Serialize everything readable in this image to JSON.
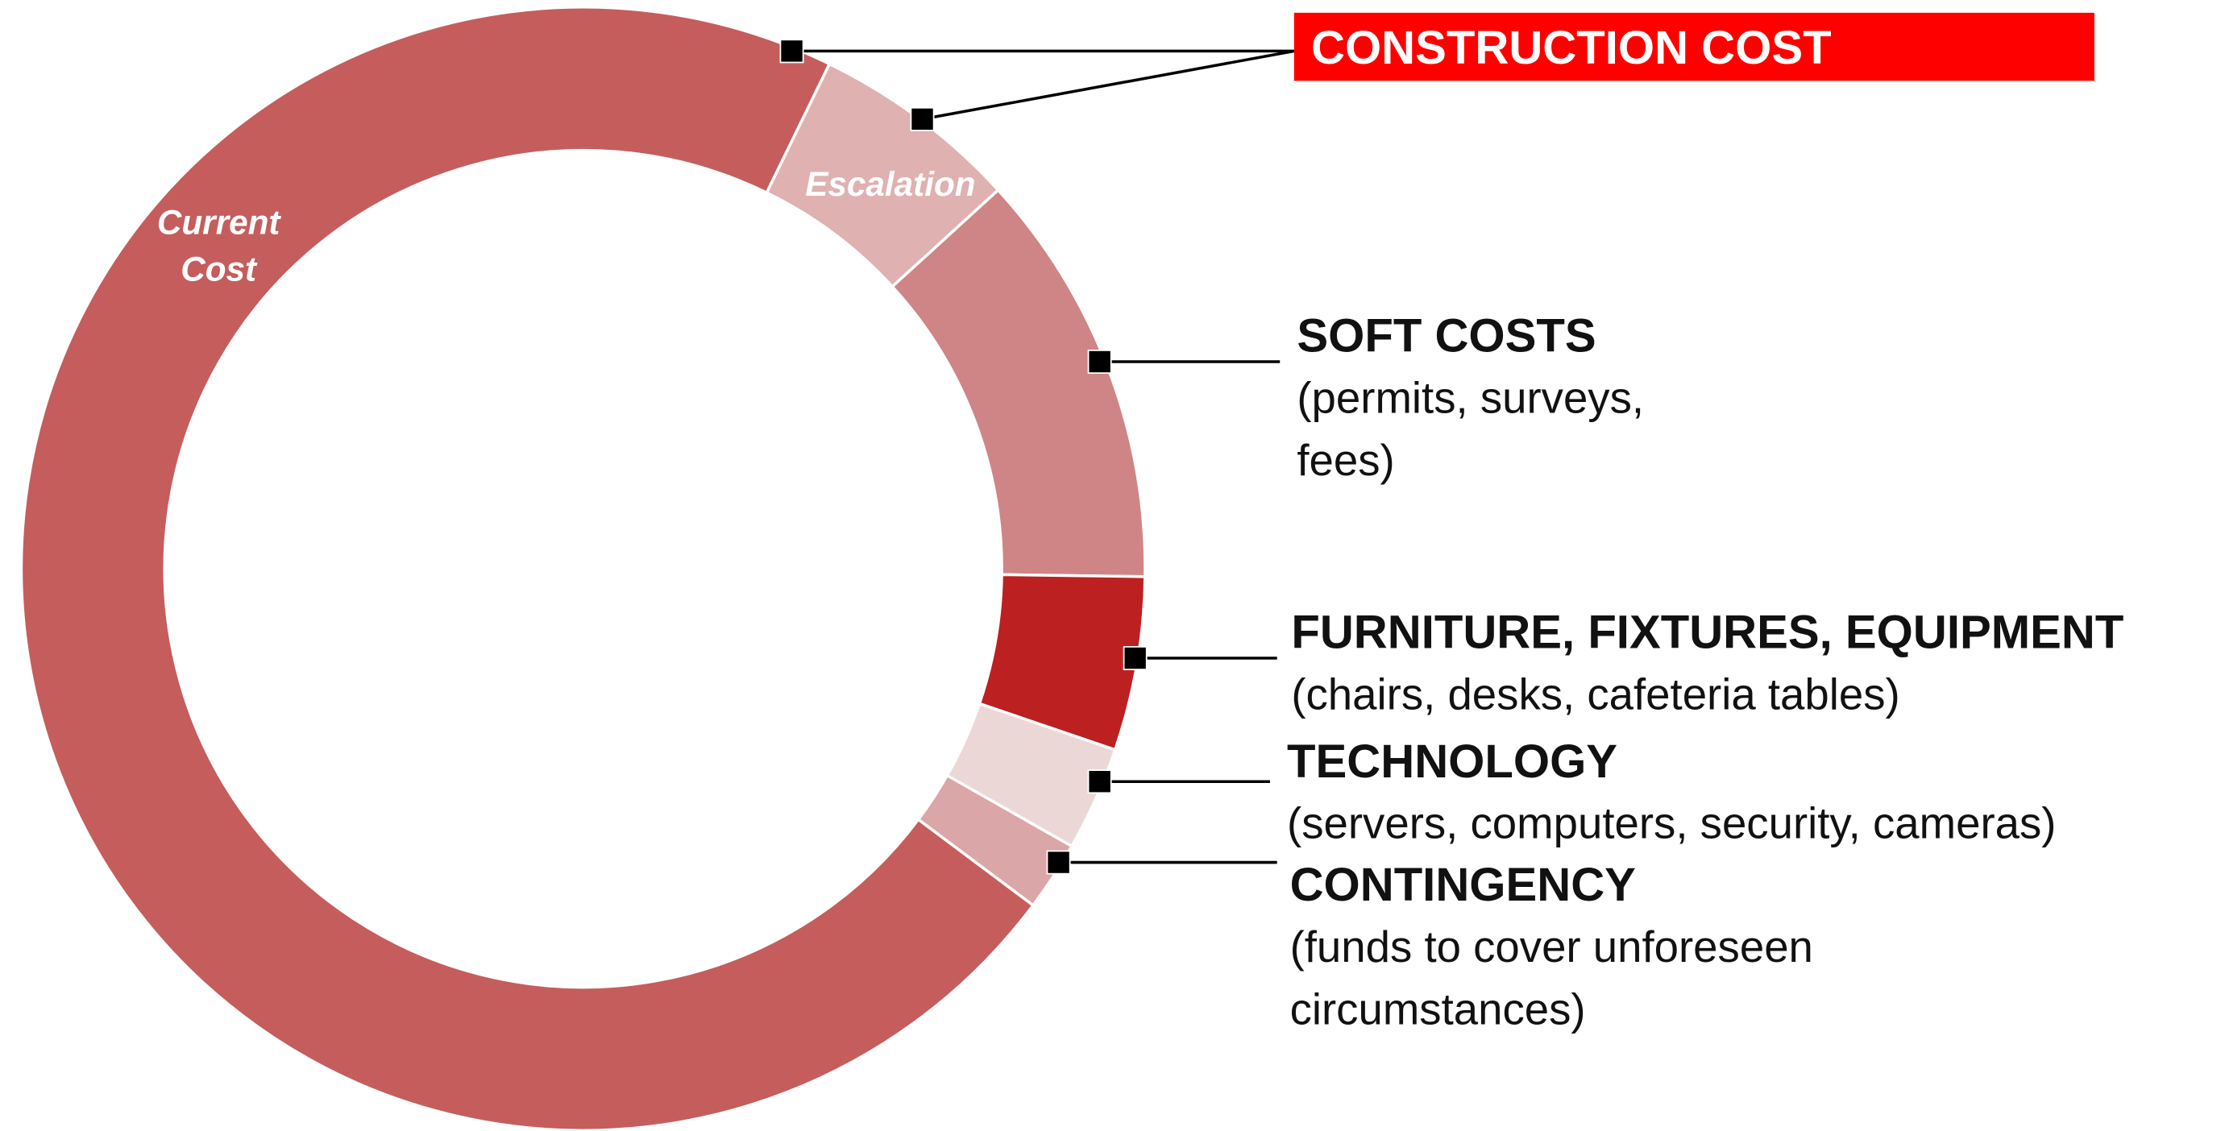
{
  "chart_data": {
    "type": "donut",
    "categories": [
      "Current Cost",
      "Escalation",
      "SOFT COSTS",
      "FURNITURE, FIXTURES, EQUIPMENT",
      "TECHNOLOGY",
      "CONTINGENCY"
    ],
    "descriptions": [
      null,
      null,
      "(permits, surveys, fees)",
      "(chairs, desks, cafeteria tables)",
      "(servers, computers, security, cameras)",
      "(funds to cover unforeseen circumstances)"
    ],
    "values": [
      72,
      6,
      12,
      5,
      3,
      2
    ],
    "colors": [
      "#c55d5d",
      "#dfb1b1",
      "#cf8585",
      "#bc2020",
      "#ecd7d7",
      "#dba6a8"
    ],
    "group_label": "CONSTRUCTION COST"
  }
}
